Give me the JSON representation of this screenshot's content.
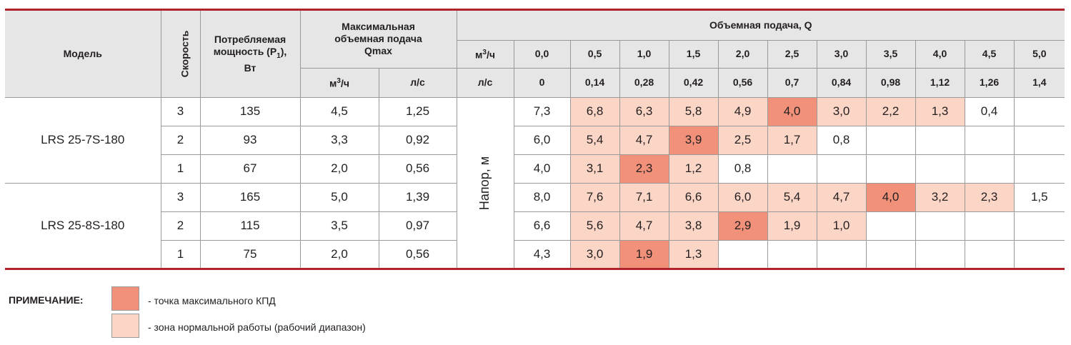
{
  "header": {
    "model": "Модель",
    "speed": "Скорость",
    "power_line1": "Потребляемая",
    "power_line2": "мощность (P",
    "power_sub": "1",
    "power_line3": "),",
    "power_unit": "Вт",
    "qmax_line1": "Максимальная",
    "qmax_line2": "объемная подача",
    "qmax_line3": "Qmax",
    "qmax_unit_m3": "м",
    "qmax_unit_m3_sup": "3",
    "qmax_unit_m3_tail": "/ч",
    "qmax_unit_ls": "л/с",
    "flow_title": "Объемная подача, Q",
    "flow_unit_m3": "м",
    "flow_unit_m3_sup": "3",
    "flow_unit_m3_tail": "/ч",
    "flow_unit_ls": "л/с",
    "flow_m3h": [
      "0,0",
      "0,5",
      "1,0",
      "1,5",
      "2,0",
      "2,5",
      "3,0",
      "3,5",
      "4,0",
      "4,5",
      "5,0"
    ],
    "flow_ls": [
      "0",
      "0,14",
      "0,28",
      "0,42",
      "0,56",
      "0,7",
      "0,84",
      "0,98",
      "1,12",
      "1,26",
      "1,4"
    ],
    "head_label": "Напор, м"
  },
  "models": [
    {
      "name": "LRS 25-7S-180",
      "rows": [
        {
          "speed": "3",
          "power": "135",
          "qmax_m3h": "4,5",
          "qmax_ls": "1,25",
          "head": [
            "7,3",
            "6,8",
            "6,3",
            "5,8",
            "4,9",
            "4,0",
            "3,0",
            "2,2",
            "1,3",
            "0,4",
            ""
          ],
          "zone": [
            "",
            "norm",
            "norm",
            "norm",
            "norm",
            "max",
            "norm",
            "norm",
            "norm",
            "",
            ""
          ]
        },
        {
          "speed": "2",
          "power": "93",
          "qmax_m3h": "3,3",
          "qmax_ls": "0,92",
          "head": [
            "6,0",
            "5,4",
            "4,7",
            "3,9",
            "2,5",
            "1,7",
            "0,8",
            "",
            "",
            "",
            ""
          ],
          "zone": [
            "",
            "norm",
            "norm",
            "max",
            "norm",
            "norm",
            "",
            "",
            "",
            "",
            ""
          ]
        },
        {
          "speed": "1",
          "power": "67",
          "qmax_m3h": "2,0",
          "qmax_ls": "0,56",
          "head": [
            "4,0",
            "3,1",
            "2,3",
            "1,2",
            "0,8",
            "",
            "",
            "",
            "",
            "",
            ""
          ],
          "zone": [
            "",
            "norm",
            "max",
            "norm",
            "",
            "",
            "",
            "",
            "",
            "",
            ""
          ]
        }
      ]
    },
    {
      "name": "LRS 25-8S-180",
      "rows": [
        {
          "speed": "3",
          "power": "165",
          "qmax_m3h": "5,0",
          "qmax_ls": "1,39",
          "head": [
            "8,0",
            "7,6",
            "7,1",
            "6,6",
            "6,0",
            "5,4",
            "4,7",
            "4,0",
            "3,2",
            "2,3",
            "1,5"
          ],
          "zone": [
            "",
            "norm",
            "norm",
            "norm",
            "norm",
            "norm",
            "norm",
            "max",
            "norm",
            "norm",
            ""
          ]
        },
        {
          "speed": "2",
          "power": "115",
          "qmax_m3h": "3,5",
          "qmax_ls": "0,97",
          "head": [
            "6,6",
            "5,6",
            "4,7",
            "3,8",
            "2,9",
            "1,9",
            "1,0",
            "",
            "",
            "",
            ""
          ],
          "zone": [
            "",
            "norm",
            "norm",
            "norm",
            "max",
            "norm",
            "norm",
            "",
            "",
            "",
            ""
          ]
        },
        {
          "speed": "1",
          "power": "75",
          "qmax_m3h": "2,0",
          "qmax_ls": "0,56",
          "head": [
            "4,3",
            "3,0",
            "1,9",
            "1,3",
            "",
            "",
            "",
            "",
            "",
            "",
            ""
          ],
          "zone": [
            "",
            "norm",
            "max",
            "norm",
            "",
            "",
            "",
            "",
            "",
            "",
            ""
          ]
        }
      ]
    }
  ],
  "note": {
    "label": "ПРИМЕЧАНИЕ:",
    "max_text": "- точка максимального КПД",
    "norm_text": "- зона нормальной работы (рабочий диапазон)"
  },
  "colors": {
    "max": "#f2917a",
    "norm": "#fbd5c5",
    "rule": "#b0242b",
    "header_bg": "#e6e6e7"
  }
}
